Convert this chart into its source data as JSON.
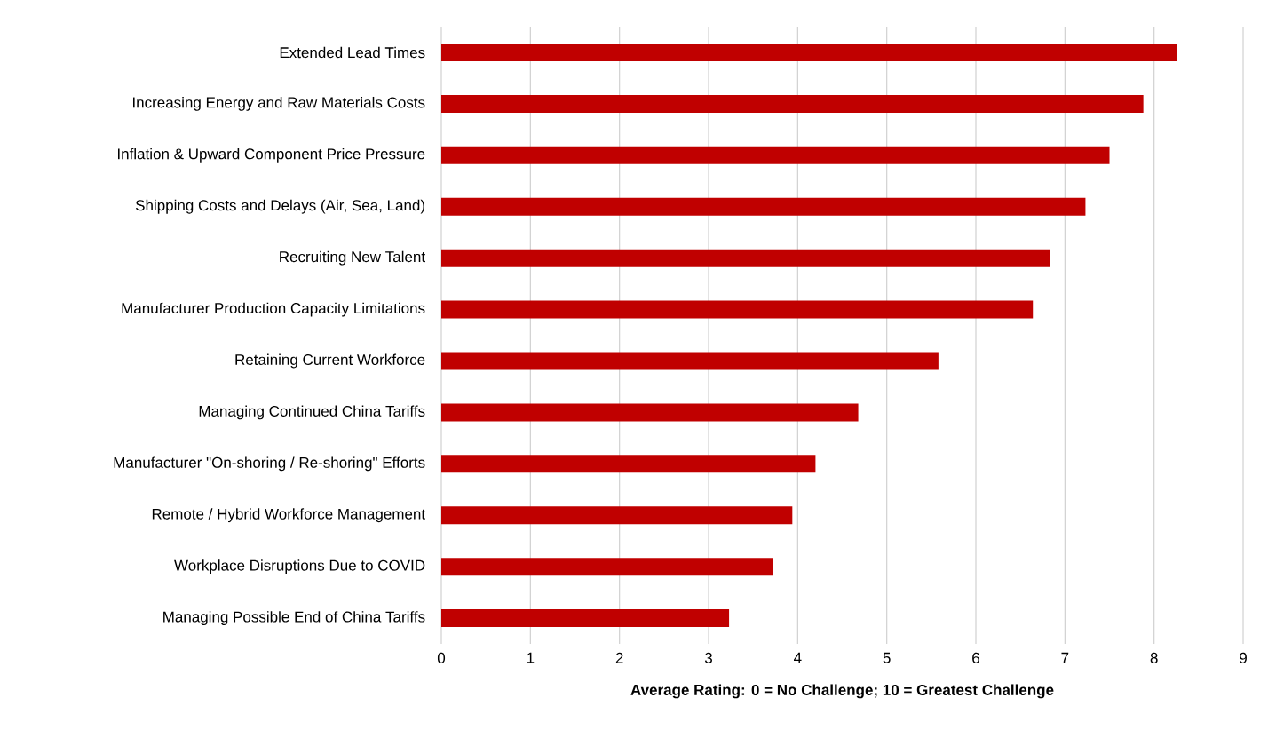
{
  "chart_data": {
    "type": "bar",
    "orientation": "horizontal",
    "xlabel": "Average Rating: 0 = No Challenge; 10 = Greatest Challenge",
    "categories": [
      "Extended Lead Times",
      "Increasing Energy and Raw Materials Costs",
      "Inflation & Upward Component Price Pressure",
      "Shipping Costs and Delays (Air, Sea, Land)",
      "Recruiting New Talent",
      "Manufacturer Production Capacity Limitations",
      "Retaining Current Workforce",
      "Managing Continued China Tariffs",
      "Manufacturer \"On-shoring / Re-shoring\" Efforts",
      "Remote / Hybrid Workforce Management",
      "Workplace Disruptions Due to COVID",
      "Managing Possible End of China Tariffs"
    ],
    "values": [
      8.26,
      7.88,
      7.5,
      7.23,
      6.83,
      6.64,
      5.58,
      4.68,
      4.2,
      3.94,
      3.72,
      3.23
    ],
    "color": "#c00000",
    "xlim": [
      0,
      9
    ],
    "xticks": [
      0,
      1,
      2,
      3,
      4,
      5,
      6,
      7,
      8,
      9
    ],
    "grid": "x"
  }
}
